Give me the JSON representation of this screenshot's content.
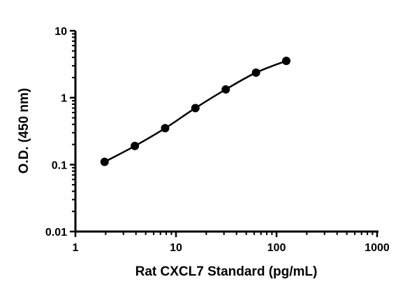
{
  "chart_data": {
    "type": "scatter",
    "title": "",
    "xlabel": "Rat CXCL7 Standard (pg/mL)",
    "ylabel": "O.D. (450 nm)",
    "x_scale": "log",
    "y_scale": "log",
    "xlim": [
      1,
      1000
    ],
    "ylim": [
      0.01,
      10
    ],
    "x_ticks": [
      "1",
      "10",
      "100",
      "1000"
    ],
    "y_ticks": [
      "0.01",
      "0.1",
      "1",
      "10"
    ],
    "grid": false,
    "fit_curve": true,
    "marker_color": "#000000",
    "series": [
      {
        "x": [
          1.95,
          3.9,
          7.8,
          15.6,
          31.25,
          62.5,
          125
        ],
        "y": [
          0.11,
          0.19,
          0.35,
          0.7,
          1.33,
          2.37,
          3.55
        ]
      }
    ]
  }
}
